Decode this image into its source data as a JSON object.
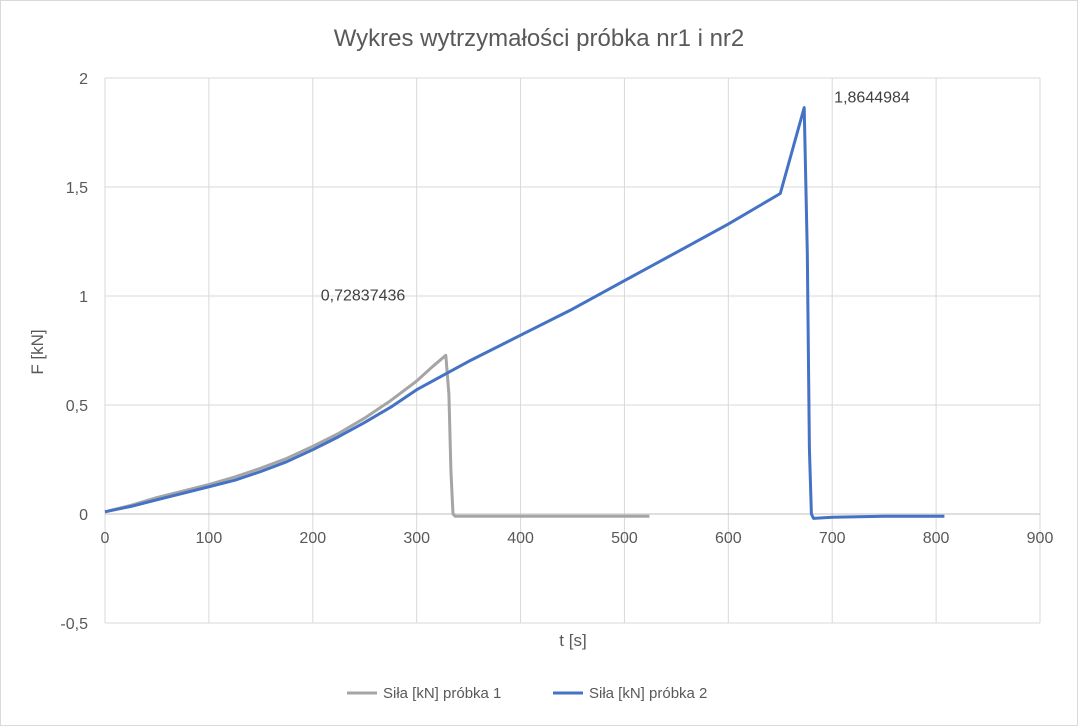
{
  "chart_data": {
    "type": "line",
    "title": "Wykres wytrzymałości próbka nr1 i nr2",
    "xlabel": "t [s]",
    "ylabel": "F [kN]",
    "xlim": [
      0,
      900
    ],
    "ylim": [
      -0.5,
      2
    ],
    "x_ticks": [
      "0",
      "100",
      "200",
      "300",
      "400",
      "500",
      "600",
      "700",
      "800",
      "900"
    ],
    "y_ticks": [
      "-0,5",
      "0",
      "0,5",
      "1",
      "1,5",
      "2"
    ],
    "grid": true,
    "legend_position": "bottom",
    "series": [
      {
        "name": "Siła [kN] próbka 1",
        "color": "#a5a5a5",
        "points": [
          [
            0,
            0.01
          ],
          [
            25,
            0.04
          ],
          [
            50,
            0.075
          ],
          [
            75,
            0.105
          ],
          [
            100,
            0.135
          ],
          [
            125,
            0.17
          ],
          [
            150,
            0.21
          ],
          [
            175,
            0.255
          ],
          [
            200,
            0.31
          ],
          [
            225,
            0.37
          ],
          [
            250,
            0.44
          ],
          [
            275,
            0.52
          ],
          [
            300,
            0.61
          ],
          [
            315,
            0.675
          ],
          [
            328,
            0.728
          ],
          [
            331,
            0.55
          ],
          [
            333,
            0.2
          ],
          [
            335,
            0.0
          ],
          [
            337,
            -0.01
          ],
          [
            400,
            -0.01
          ],
          [
            450,
            -0.01
          ],
          [
            500,
            -0.01
          ],
          [
            524,
            -0.01
          ]
        ]
      },
      {
        "name": "Siła [kN] próbka 2",
        "color": "#4472c4",
        "points": [
          [
            0,
            0.01
          ],
          [
            25,
            0.035
          ],
          [
            50,
            0.065
          ],
          [
            75,
            0.095
          ],
          [
            100,
            0.125
          ],
          [
            125,
            0.155
          ],
          [
            150,
            0.195
          ],
          [
            175,
            0.24
          ],
          [
            200,
            0.295
          ],
          [
            225,
            0.355
          ],
          [
            250,
            0.42
          ],
          [
            275,
            0.49
          ],
          [
            300,
            0.57
          ],
          [
            325,
            0.635
          ],
          [
            350,
            0.7
          ],
          [
            400,
            0.82
          ],
          [
            450,
            0.94
          ],
          [
            500,
            1.07
          ],
          [
            550,
            1.2
          ],
          [
            600,
            1.33
          ],
          [
            650,
            1.47
          ],
          [
            673,
            1.864
          ],
          [
            676,
            1.2
          ],
          [
            678,
            0.3
          ],
          [
            680,
            0.0
          ],
          [
            682,
            -0.02
          ],
          [
            700,
            -0.015
          ],
          [
            750,
            -0.01
          ],
          [
            800,
            -0.01
          ],
          [
            808,
            -0.01
          ]
        ]
      }
    ],
    "annotations": [
      {
        "text": "0,72837436",
        "x": 328,
        "y": 0.728
      },
      {
        "text": "1,8644984",
        "x": 673,
        "y": 1.864
      }
    ]
  }
}
